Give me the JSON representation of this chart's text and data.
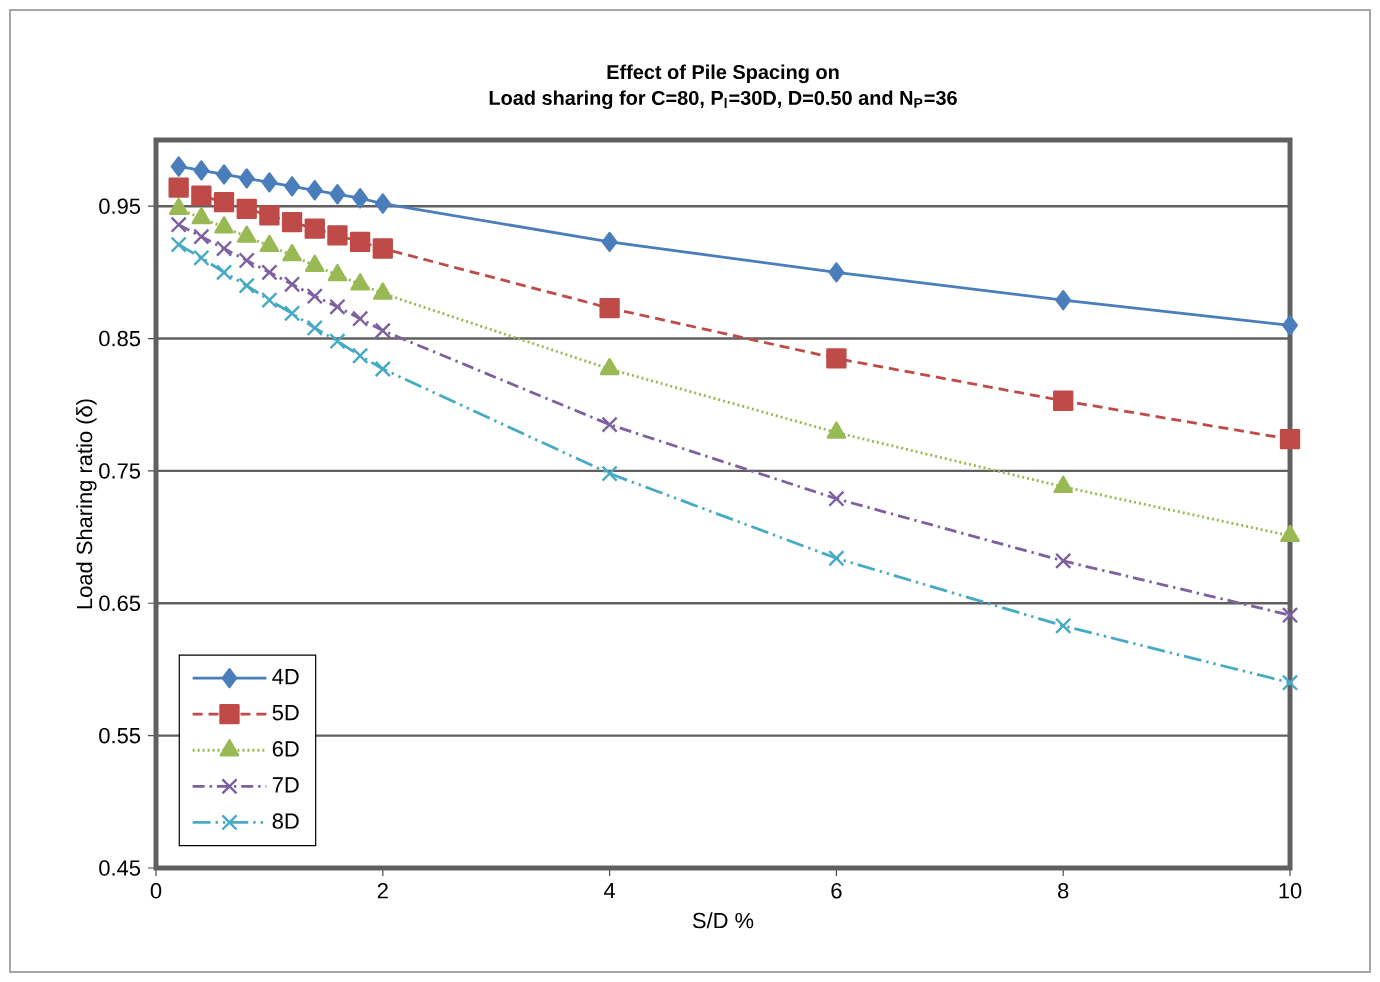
{
  "chart_data": {
    "type": "line",
    "title": "Effect of Pile Spacing on",
    "subtitle": "Load sharing for C=80, P$_{l}$=30D, D=0.50 and N$_{P}$=36",
    "xlabel": "S/D %",
    "ylabel": "Load Sharing ratio (δ)",
    "x": [
      0.2,
      0.4,
      0.6,
      0.8,
      1.0,
      1.2,
      1.4,
      1.6,
      1.8,
      2.0,
      4,
      6,
      8,
      10
    ],
    "series": [
      {
        "name": "4D",
        "color": "#4a7ebb",
        "marker": "diamond",
        "line_style": "solid",
        "values": [
          0.98,
          0.977,
          0.974,
          0.971,
          0.968,
          0.965,
          0.962,
          0.959,
          0.956,
          0.952,
          0.923,
          0.9,
          0.879,
          0.86
        ]
      },
      {
        "name": "5D",
        "color": "#be4b48",
        "marker": "square",
        "line_style": "dashed",
        "values": [
          0.964,
          0.958,
          0.953,
          0.948,
          0.943,
          0.938,
          0.933,
          0.928,
          0.923,
          0.918,
          0.873,
          0.835,
          0.803,
          0.774
        ]
      },
      {
        "name": "6D",
        "color": "#98b954",
        "marker": "triangle",
        "line_style": "dotted",
        "values": [
          0.948,
          0.941,
          0.934,
          0.927,
          0.92,
          0.913,
          0.905,
          0.898,
          0.891,
          0.884,
          0.827,
          0.779,
          0.738,
          0.701
        ]
      },
      {
        "name": "7D",
        "color": "#7d60a0",
        "marker": "cross",
        "line_style": "dashdot",
        "values": [
          0.936,
          0.927,
          0.918,
          0.909,
          0.9,
          0.891,
          0.882,
          0.874,
          0.865,
          0.856,
          0.785,
          0.729,
          0.682,
          0.641
        ]
      },
      {
        "name": "8D",
        "color": "#46aac5",
        "marker": "cross",
        "line_style": "dashdotdot",
        "values": [
          0.921,
          0.911,
          0.9,
          0.89,
          0.879,
          0.869,
          0.858,
          0.848,
          0.837,
          0.827,
          0.748,
          0.684,
          0.633,
          0.59
        ]
      }
    ],
    "xlim": [
      0,
      10
    ],
    "xticks": [
      0,
      2,
      4,
      6,
      8,
      10
    ],
    "ylim": [
      0.45,
      1.0
    ],
    "yticks": [
      0.45,
      0.55,
      0.65,
      0.75,
      0.85,
      0.95
    ],
    "grid": "y",
    "legend": "bottom left"
  }
}
